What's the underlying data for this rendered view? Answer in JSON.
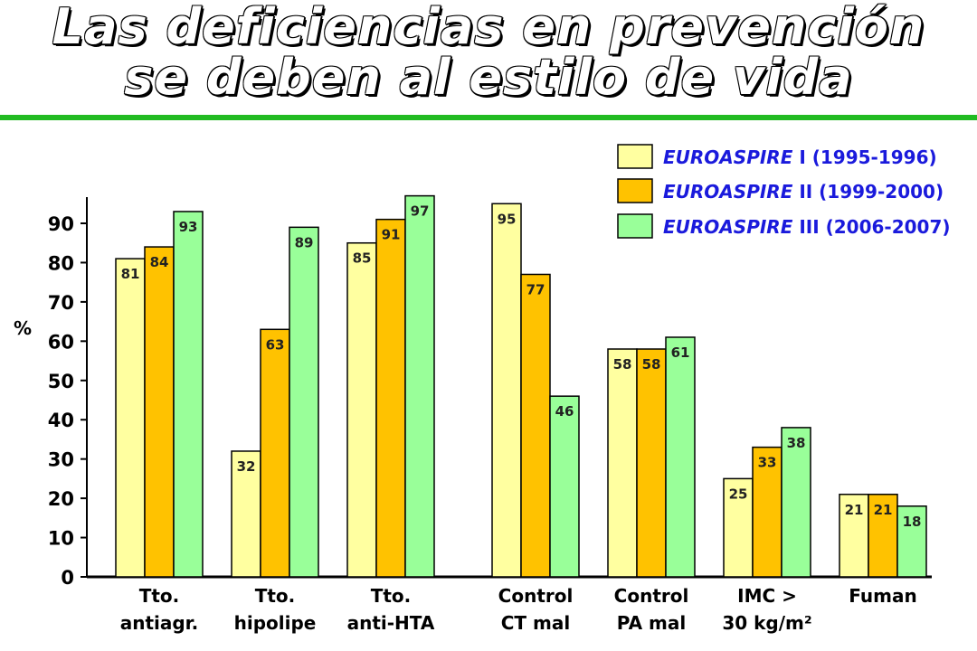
{
  "title": {
    "line1": "Las deficiencias en prevención",
    "line2": "se deben al estilo de vida"
  },
  "colors": {
    "rule": "#22bb22",
    "series": [
      "#ffffa0",
      "#ffc200",
      "#99ff99"
    ],
    "legend_text": "#1a1adc"
  },
  "chart_data": {
    "type": "bar",
    "ylabel": "%",
    "ylim": [
      0,
      97
    ],
    "yticks": [
      0,
      10,
      20,
      30,
      40,
      50,
      60,
      70,
      80,
      90
    ],
    "grid": false,
    "legend_position": "top-right",
    "categories": [
      [
        "Tto.",
        "antiagr."
      ],
      [
        "Tto.",
        "hipolipe"
      ],
      [
        "Tto.",
        "anti-HTA"
      ],
      [
        "Control",
        "CT mal"
      ],
      [
        "Control",
        "PA mal"
      ],
      [
        "IMC >",
        "30 kg/m²"
      ],
      [
        "Fuman"
      ]
    ],
    "series": [
      {
        "name": "EUROASPIRE I (1995-1996)",
        "italic": "EUROASPIRE",
        "rest": " I (1995-1996)",
        "values": [
          81,
          32,
          85,
          95,
          58,
          25,
          21
        ]
      },
      {
        "name": "EUROASPIRE II (1999-2000)",
        "italic": "EUROASPIRE",
        "rest": " II (1999-2000)",
        "values": [
          84,
          63,
          91,
          77,
          58,
          33,
          21
        ]
      },
      {
        "name": "EUROASPIRE III (2006-2007)",
        "italic": "EUROASPIRE",
        "rest": " III (2006-2007)",
        "values": [
          93,
          89,
          97,
          46,
          61,
          38,
          18
        ]
      }
    ]
  }
}
